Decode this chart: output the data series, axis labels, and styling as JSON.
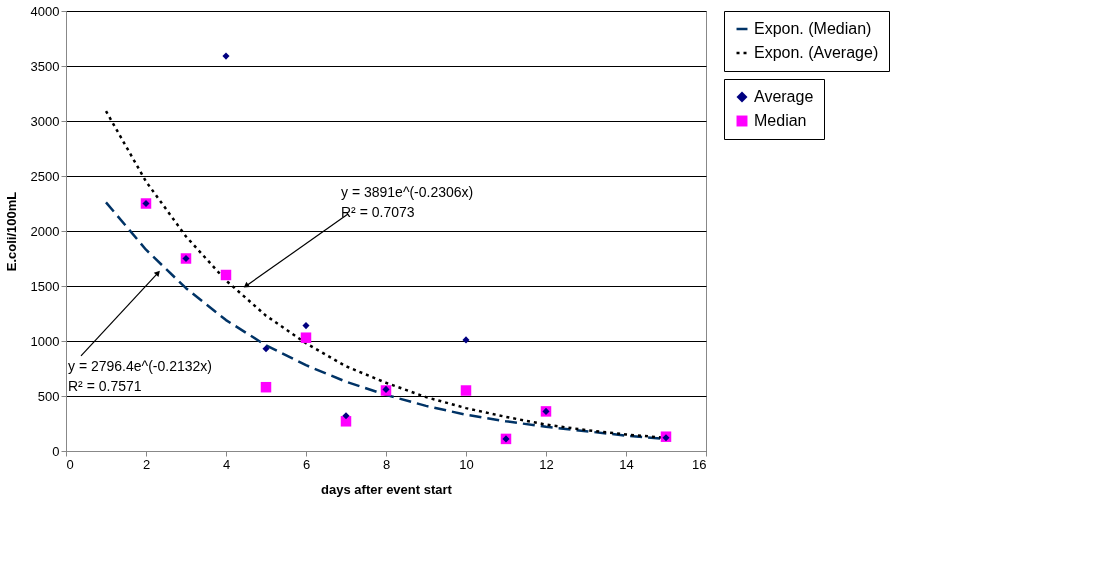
{
  "chart_data": {
    "type": "scatter",
    "xlabel": "days after event start",
    "ylabel": "E.coli/100mL",
    "xlim": [
      0,
      16
    ],
    "xticks": [
      0,
      2,
      4,
      6,
      8,
      10,
      12,
      14,
      16
    ],
    "ylim": [
      0,
      4000
    ],
    "yticks": [
      0,
      500,
      1000,
      1500,
      2000,
      2500,
      3000,
      3500,
      4000
    ],
    "grid": "y",
    "legend": "right",
    "series": [
      {
        "name": "Average",
        "marker": "diamond",
        "color": "#000080",
        "x": [
          2,
          3,
          4,
          5,
          6,
          7,
          8,
          10,
          11,
          12,
          15
        ],
        "values": [
          2250,
          1750,
          3590,
          930,
          1140,
          320,
          560,
          1010,
          110,
          360,
          120
        ]
      },
      {
        "name": "Median",
        "marker": "square",
        "color": "#ff00ff",
        "x": [
          2,
          3,
          4,
          5,
          6,
          7,
          8,
          10,
          11,
          12,
          15
        ],
        "values": [
          2250,
          1750,
          1600,
          580,
          1030,
          270,
          550,
          550,
          110,
          360,
          130
        ]
      },
      {
        "name": "Expon. (Median)",
        "type": "line",
        "line_style": "dashed",
        "color": "#003366",
        "x": [
          1,
          2,
          3,
          4,
          5,
          6,
          7,
          8,
          9,
          10,
          11,
          12,
          13,
          14,
          15
        ],
        "values": [
          2260,
          1830,
          1480,
          1190,
          960,
          780,
          630,
          510,
          410,
          330,
          270,
          220,
          180,
          140,
          110
        ]
      },
      {
        "name": "Expon. (Average)",
        "type": "line",
        "line_style": "dotted",
        "color": "#000000",
        "x": [
          1,
          2,
          3,
          4,
          5,
          6,
          7,
          8,
          9,
          10,
          11,
          12,
          13,
          14,
          15
        ],
        "values": [
          3090,
          2450,
          1950,
          1550,
          1230,
          980,
          770,
          620,
          490,
          390,
          310,
          240,
          190,
          150,
          120
        ]
      }
    ],
    "annotations": [
      {
        "text": "y = 3891e^(-0.2306x)\nR² = 0.7073",
        "x": 4.5,
        "y": 1500
      },
      {
        "text": "y = 2796.4e^(-0.2132x)\nR² = 0.7571",
        "x": 2.3,
        "y": 1620
      }
    ]
  }
}
